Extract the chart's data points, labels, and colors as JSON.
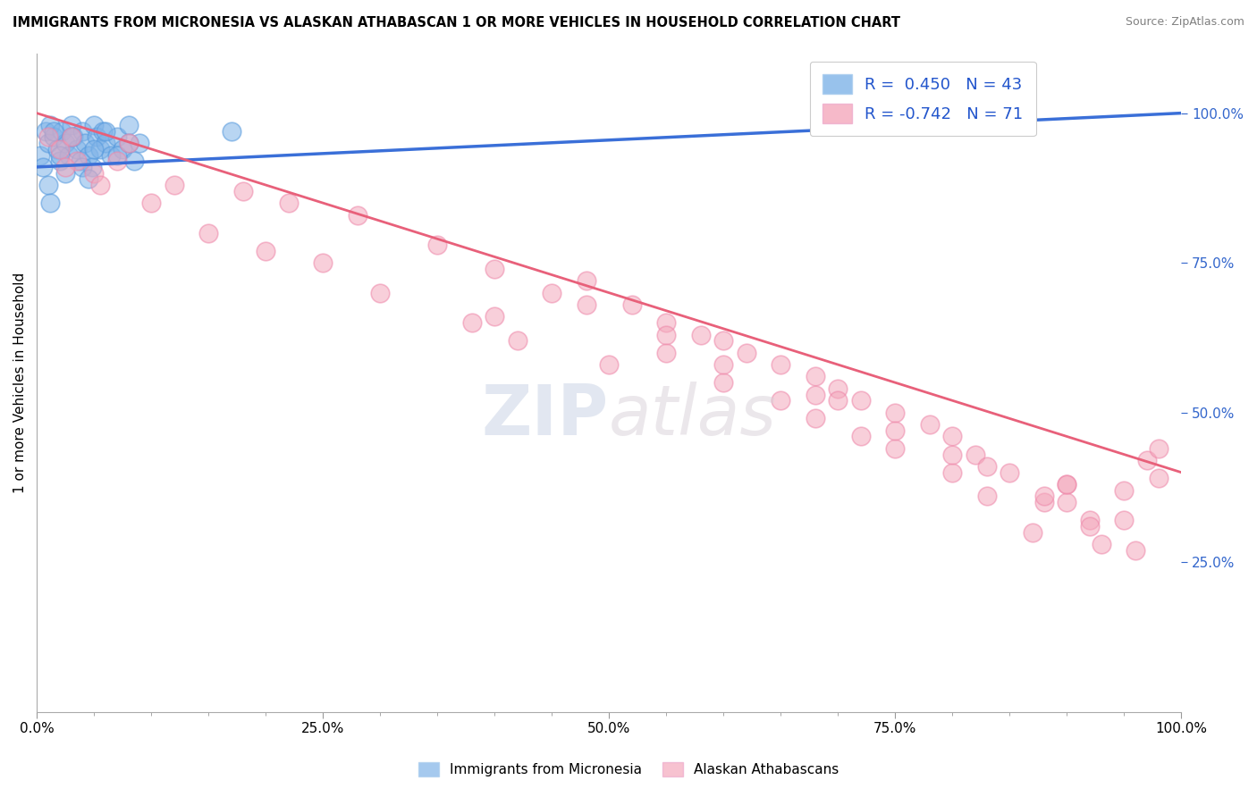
{
  "title": "IMMIGRANTS FROM MICRONESIA VS ALASKAN ATHABASCAN 1 OR MORE VEHICLES IN HOUSEHOLD CORRELATION CHART",
  "source": "Source: ZipAtlas.com",
  "ylabel": "1 or more Vehicles in Household",
  "background_color": "#ffffff",
  "grid_color": "#cccccc",
  "blue_color": "#7fb3e8",
  "blue_edge_color": "#5599dd",
  "pink_color": "#f4a8bc",
  "pink_edge_color": "#ee88aa",
  "blue_line_color": "#3a6fd8",
  "pink_line_color": "#e8607a",
  "R_blue": 0.45,
  "N_blue": 43,
  "R_pink": -0.742,
  "N_pink": 71,
  "legend_text_color": "#2255cc",
  "xlim": [
    0,
    100
  ],
  "ylim": [
    0,
    110
  ],
  "xticks": [
    0,
    10,
    20,
    30,
    40,
    50,
    60,
    70,
    80,
    90,
    100
  ],
  "xticklabels_major": [
    "0.0%",
    "",
    "",
    "",
    "",
    "50.0%",
    "",
    "",
    "",
    "",
    "100.0%"
  ],
  "ytick_right": [
    25,
    50,
    75,
    100
  ],
  "yticklabels_right": [
    "25.0%",
    "50.0%",
    "75.0%",
    "100.0%"
  ],
  "blue_points_x": [
    0.3,
    0.5,
    0.8,
    1.0,
    1.2,
    1.5,
    1.8,
    2.0,
    2.2,
    2.5,
    2.8,
    3.0,
    3.2,
    3.5,
    3.8,
    4.0,
    4.2,
    4.5,
    4.8,
    5.0,
    5.2,
    5.5,
    5.8,
    6.0,
    6.5,
    7.0,
    7.5,
    8.0,
    8.5,
    9.0,
    1.0,
    1.5,
    2.0,
    3.0,
    4.0,
    5.0,
    6.0,
    7.0,
    8.0,
    17.0,
    1.2,
    2.5,
    4.5
  ],
  "blue_points_y": [
    93,
    91,
    97,
    95,
    98,
    96,
    94,
    92,
    97,
    95,
    93,
    98,
    96,
    94,
    92,
    97,
    95,
    93,
    91,
    98,
    96,
    94,
    97,
    95,
    93,
    96,
    94,
    98,
    92,
    95,
    88,
    97,
    93,
    96,
    91,
    94,
    97,
    93,
    95,
    97,
    85,
    90,
    89
  ],
  "pink_points_x": [
    1.0,
    2.0,
    3.5,
    5.0,
    8.0,
    12.0,
    18.0,
    22.0,
    28.0,
    35.0,
    40.0,
    45.0,
    48.0,
    52.0,
    55.0,
    58.0,
    60.0,
    62.0,
    65.0,
    68.0,
    70.0,
    72.0,
    75.0,
    78.0,
    80.0,
    82.0,
    85.0,
    88.0,
    90.0,
    92.0,
    95.0,
    97.0,
    98.0,
    2.5,
    5.5,
    10.0,
    15.0,
    20.0,
    30.0,
    38.0,
    42.0,
    50.0,
    55.0,
    60.0,
    65.0,
    68.0,
    72.0,
    75.0,
    80.0,
    83.0,
    87.0,
    90.0,
    93.0,
    95.0,
    98.0,
    3.0,
    7.0,
    25.0,
    40.0,
    55.0,
    68.0,
    75.0,
    83.0,
    90.0,
    48.0,
    60.0,
    70.0,
    80.0,
    88.0,
    92.0,
    96.0
  ],
  "pink_points_y": [
    96,
    94,
    92,
    90,
    95,
    88,
    87,
    85,
    83,
    78,
    74,
    70,
    72,
    68,
    65,
    63,
    62,
    60,
    58,
    56,
    54,
    52,
    50,
    48,
    46,
    43,
    40,
    35,
    38,
    32,
    37,
    42,
    44,
    91,
    88,
    85,
    80,
    77,
    70,
    65,
    62,
    58,
    63,
    55,
    52,
    49,
    46,
    44,
    40,
    36,
    30,
    35,
    28,
    32,
    39,
    96,
    92,
    75,
    66,
    60,
    53,
    47,
    41,
    38,
    68,
    58,
    52,
    43,
    36,
    31,
    27
  ],
  "blue_trend_x0": 0,
  "blue_trend_y0": 91,
  "blue_trend_x1": 100,
  "blue_trend_y1": 100,
  "pink_trend_x0": 0,
  "pink_trend_y0": 100,
  "pink_trend_x1": 100,
  "pink_trend_y1": 40
}
